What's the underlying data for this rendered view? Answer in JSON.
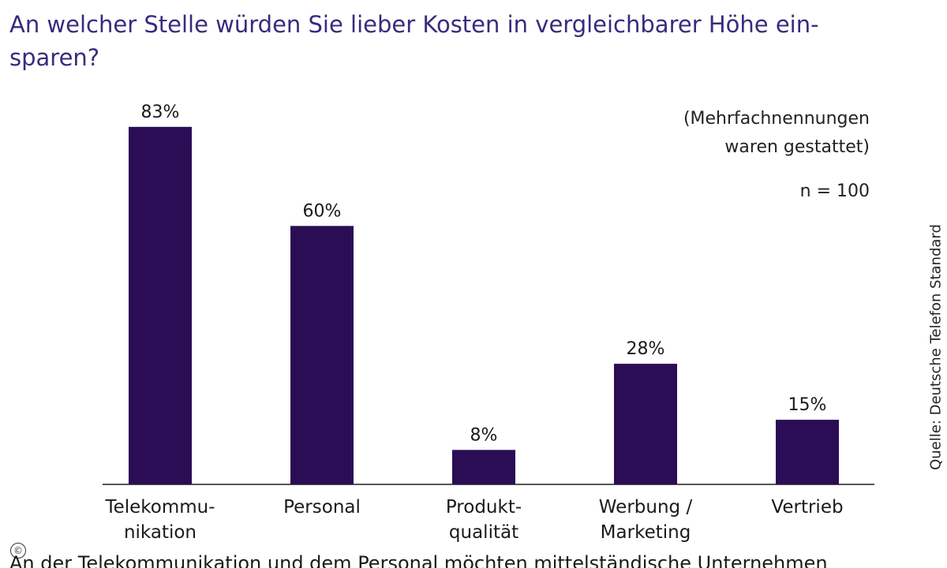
{
  "title_lines": [
    "An welcher Stelle würden Sie lieber Kosten in vergleichbarer Höhe ein-",
    "sparen?"
  ],
  "note_lines": [
    "(Mehrfachnennungen",
    "waren gestattet)"
  ],
  "sample_size": "n = 100",
  "source": "Quelle: Deutsche Telefon Standard",
  "copyright_symbol": "©",
  "footer_text": "An der Telekommunikation und dem Personal möchten mittelständische Unternehmen",
  "colors": {
    "bar": "#2a0d55",
    "title": "#3b2a7e",
    "axis": "#555555"
  },
  "chart_data": {
    "type": "bar",
    "title": "An welcher Stelle würden Sie lieber Kosten in vergleichbarer Höhe einsparen?",
    "xlabel": "",
    "ylabel": "",
    "ylim": [
      0,
      100
    ],
    "grid": false,
    "categories": [
      [
        "Telekommu-",
        "nikation"
      ],
      [
        "Personal"
      ],
      [
        "Produkt-",
        "qualität"
      ],
      [
        "Werbung /",
        "Marketing"
      ],
      [
        "Vertrieb"
      ]
    ],
    "values": [
      83,
      60,
      8,
      28,
      15
    ],
    "value_labels": [
      "83%",
      "60%",
      "8%",
      "28%",
      "15%"
    ]
  }
}
